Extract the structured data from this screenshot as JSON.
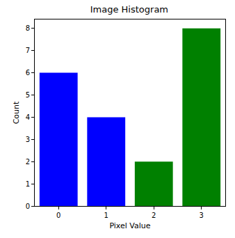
{
  "chart_data": {
    "type": "bar",
    "title": "Image Histogram",
    "x_label": "Pixel Value",
    "y_label": "Count",
    "categories": [
      "0",
      "1",
      "2",
      "3"
    ],
    "values": [
      6,
      4,
      2,
      8
    ],
    "colors": [
      "#0000ff",
      "#0000ff",
      "#008000",
      "#008000"
    ],
    "ylim": [
      0,
      8.4
    ],
    "yticks": [
      0,
      1,
      2,
      3,
      4,
      5,
      6,
      7,
      8
    ],
    "grid": false
  }
}
